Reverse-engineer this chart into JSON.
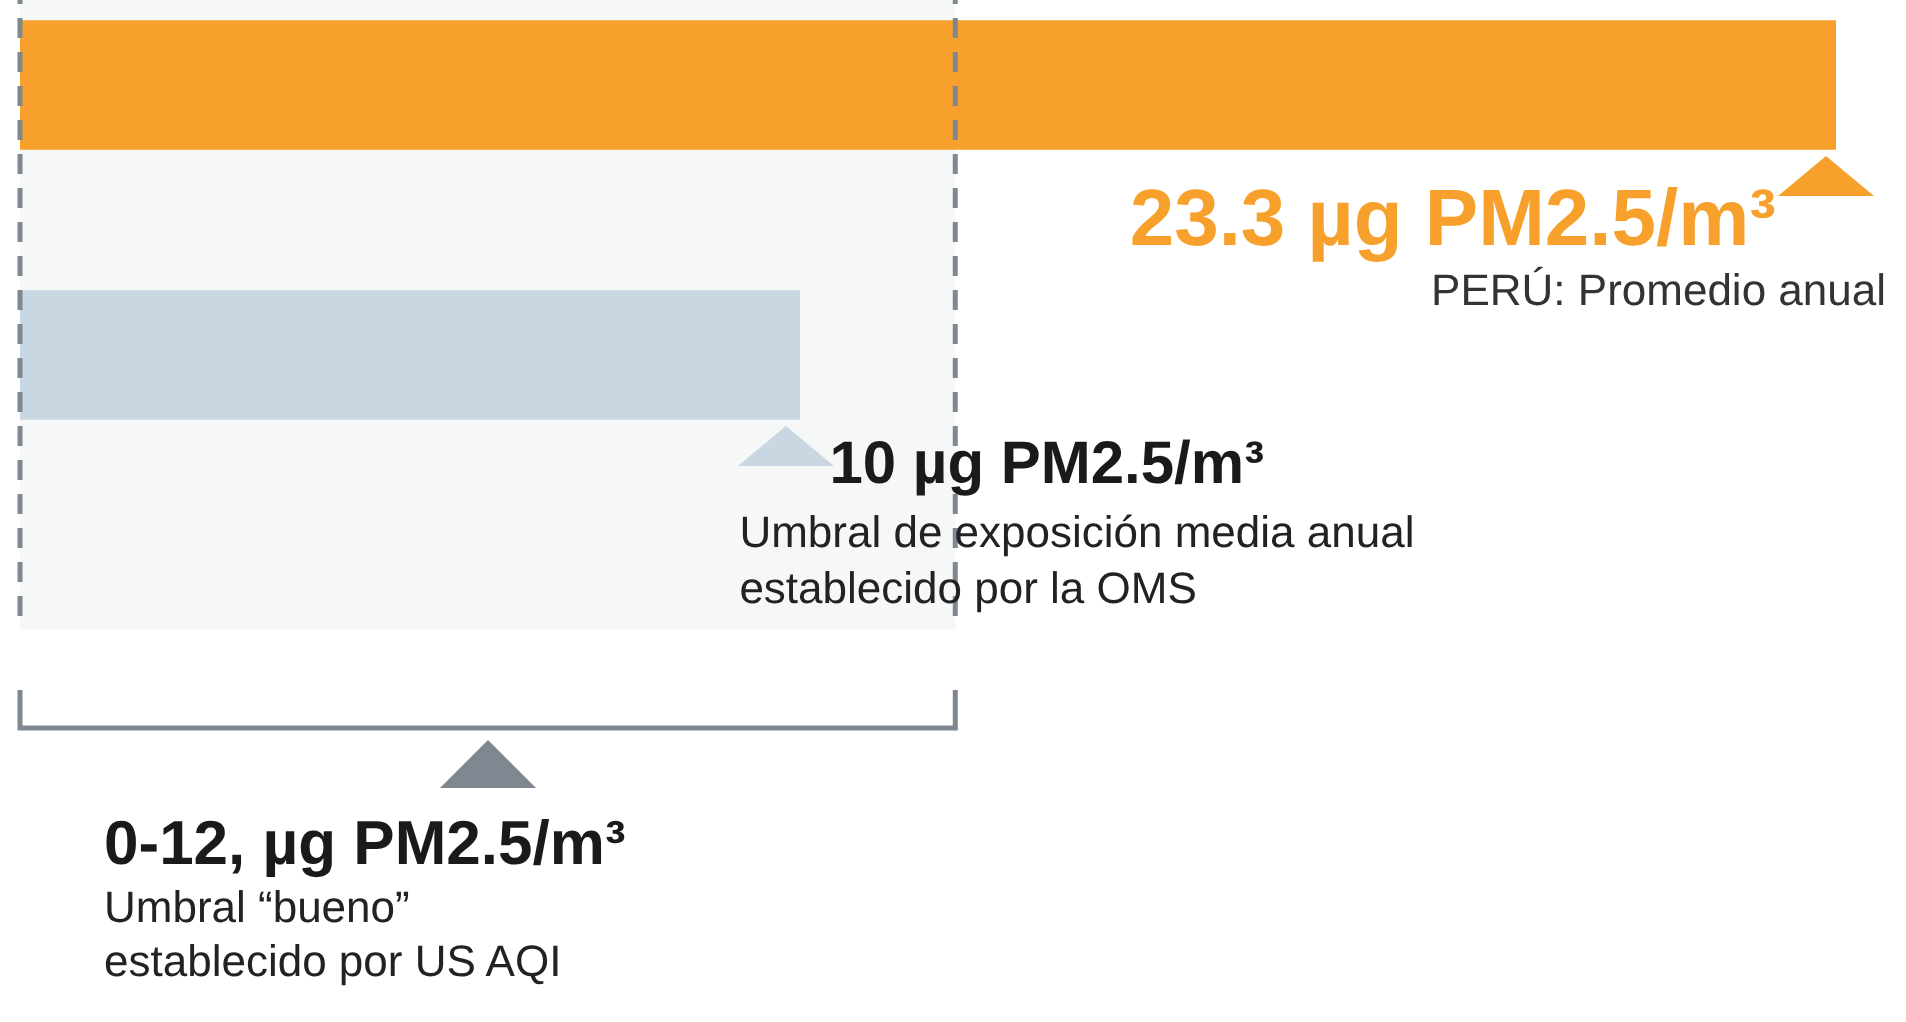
{
  "chart_data": {
    "type": "bar",
    "orientation": "horizontal",
    "categories": [
      null,
      null
    ],
    "values": [
      23.3,
      10
    ],
    "colors": [
      "#f7a02b",
      "#c9d7e2"
    ],
    "value_labels": [
      "23.3 µg PM2.5/m³",
      "10 µg PM2.5/m³"
    ],
    "tick_labels": false,
    "ref_lines": [
      {
        "axis": "x",
        "value": 0,
        "color": "#7f8891",
        "line_style": "dashed"
      },
      {
        "axis": "x",
        "value": 12,
        "color": "#7f8891",
        "line_style": "dashed"
      }
    ],
    "bands": [
      {
        "axis": "x",
        "from": 0,
        "to": 12,
        "label": "0-12, µg PM2.5/m³",
        "color": "#7f8891"
      }
    ],
    "annotations": [
      "PERÚ: Promedio anual",
      "Umbral de exposición media anual establecido por la OMS",
      "Umbral “bueno” establecido por US AQI"
    ]
  }
}
